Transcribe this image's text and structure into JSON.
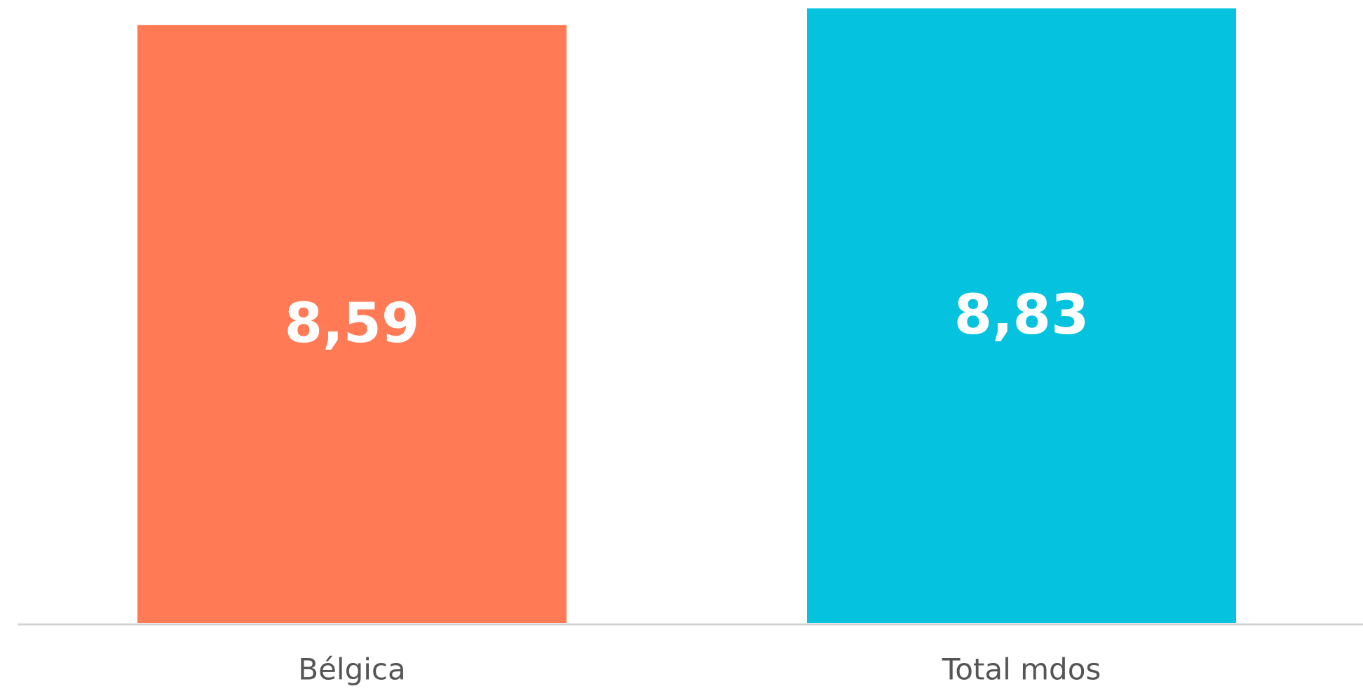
{
  "chart_data": {
    "type": "bar",
    "categories": [
      "Bélgica",
      "Total mdos"
    ],
    "values": [
      8.59,
      8.83
    ],
    "value_labels": [
      "8,59",
      "8,83"
    ],
    "colors": [
      "#ff7a55",
      "#05c3de"
    ]
  }
}
